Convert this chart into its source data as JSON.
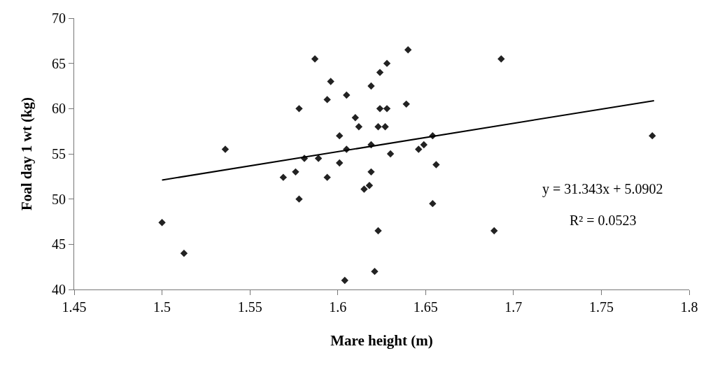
{
  "chart_data": {
    "type": "scatter",
    "xlabel": "Mare height (m)",
    "ylabel": "Foal day 1 wt (kg)",
    "xlim": [
      1.45,
      1.8
    ],
    "xticks": [
      1.45,
      1.5,
      1.55,
      1.6,
      1.65,
      1.7,
      1.75,
      1.8
    ],
    "ylim": [
      40,
      70
    ],
    "yticks": [
      40,
      45,
      50,
      55,
      60,
      65,
      70
    ],
    "grid": false,
    "marker": "diamond",
    "series": [
      {
        "color": "#222222",
        "x": [
          1.5,
          1.5125,
          1.536,
          1.569,
          1.576,
          1.578,
          1.578,
          1.587,
          1.581,
          1.589,
          1.594,
          1.596,
          1.594,
          1.601,
          1.601,
          1.605,
          1.605,
          1.604,
          1.61,
          1.612,
          1.615,
          1.618,
          1.619,
          1.619,
          1.619,
          1.621,
          1.623,
          1.623,
          1.624,
          1.624,
          1.627,
          1.628,
          1.628,
          1.63,
          1.639,
          1.64,
          1.646,
          1.649,
          1.654,
          1.654,
          1.656,
          1.689,
          1.693,
          1.779
        ],
        "values": [
          47.4,
          44,
          55.5,
          52.4,
          53,
          60,
          50,
          65.5,
          54.5,
          54.5,
          61,
          63,
          52.4,
          57,
          54,
          61.5,
          55.5,
          41,
          59,
          58,
          51.1,
          51.5,
          62.5,
          56,
          53,
          42,
          58,
          46.5,
          64,
          60,
          58,
          65,
          60,
          55,
          60.5,
          66.5,
          55.5,
          56,
          57,
          49.5,
          53.8,
          46.5,
          65.5,
          57
        ]
      },
      {
        "type": "line",
        "color": "#000000",
        "marker": "none",
        "line_style": "solid",
        "x": [
          1.5,
          1.78
        ],
        "values": [
          52.1,
          60.88
        ]
      }
    ],
    "annotations": [
      "y = 31.343x + 5.0902",
      "R² = 0.0523"
    ]
  }
}
